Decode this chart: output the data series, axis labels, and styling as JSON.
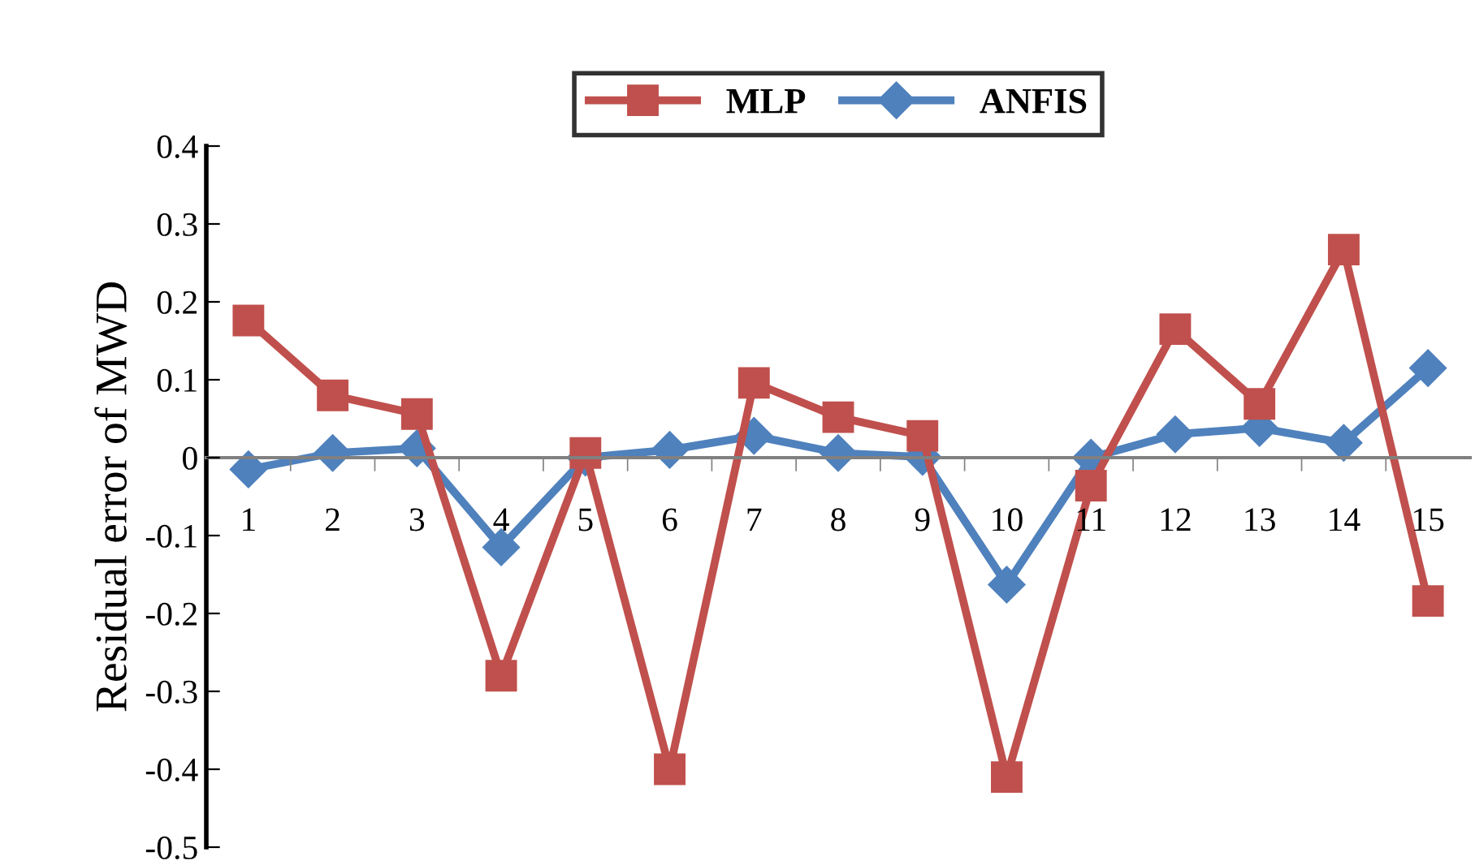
{
  "chart_data": {
    "type": "line",
    "ylabel": "Residual error of MWD",
    "categories": [
      "1",
      "2",
      "3",
      "4",
      "5",
      "6",
      "7",
      "8",
      "9",
      "10",
      "11",
      "12",
      "13",
      "14",
      "15"
    ],
    "series": [
      {
        "name": "MLP",
        "color": "#c0504d",
        "marker": "square",
        "values": [
          0.176,
          0.08,
          0.056,
          -0.28,
          0.006,
          -0.4,
          0.096,
          0.052,
          0.028,
          -0.41,
          -0.036,
          0.165,
          0.069,
          0.267,
          -0.184
        ]
      },
      {
        "name": "ANFIS",
        "color": "#4f81bd",
        "marker": "diamond",
        "values": [
          -0.015,
          0.006,
          0.012,
          -0.115,
          0,
          0.01,
          0.028,
          0.006,
          0.001,
          -0.163,
          0,
          0.03,
          0.038,
          0.019,
          0.115
        ]
      }
    ],
    "ylim": [
      -0.5,
      0.4
    ],
    "yticks": [
      -0.5,
      -0.4,
      -0.3,
      -0.2,
      -0.1,
      0,
      0.1,
      0.2,
      0.3,
      0.4
    ],
    "grid": false,
    "legend": "top",
    "line_style": "solid"
  }
}
